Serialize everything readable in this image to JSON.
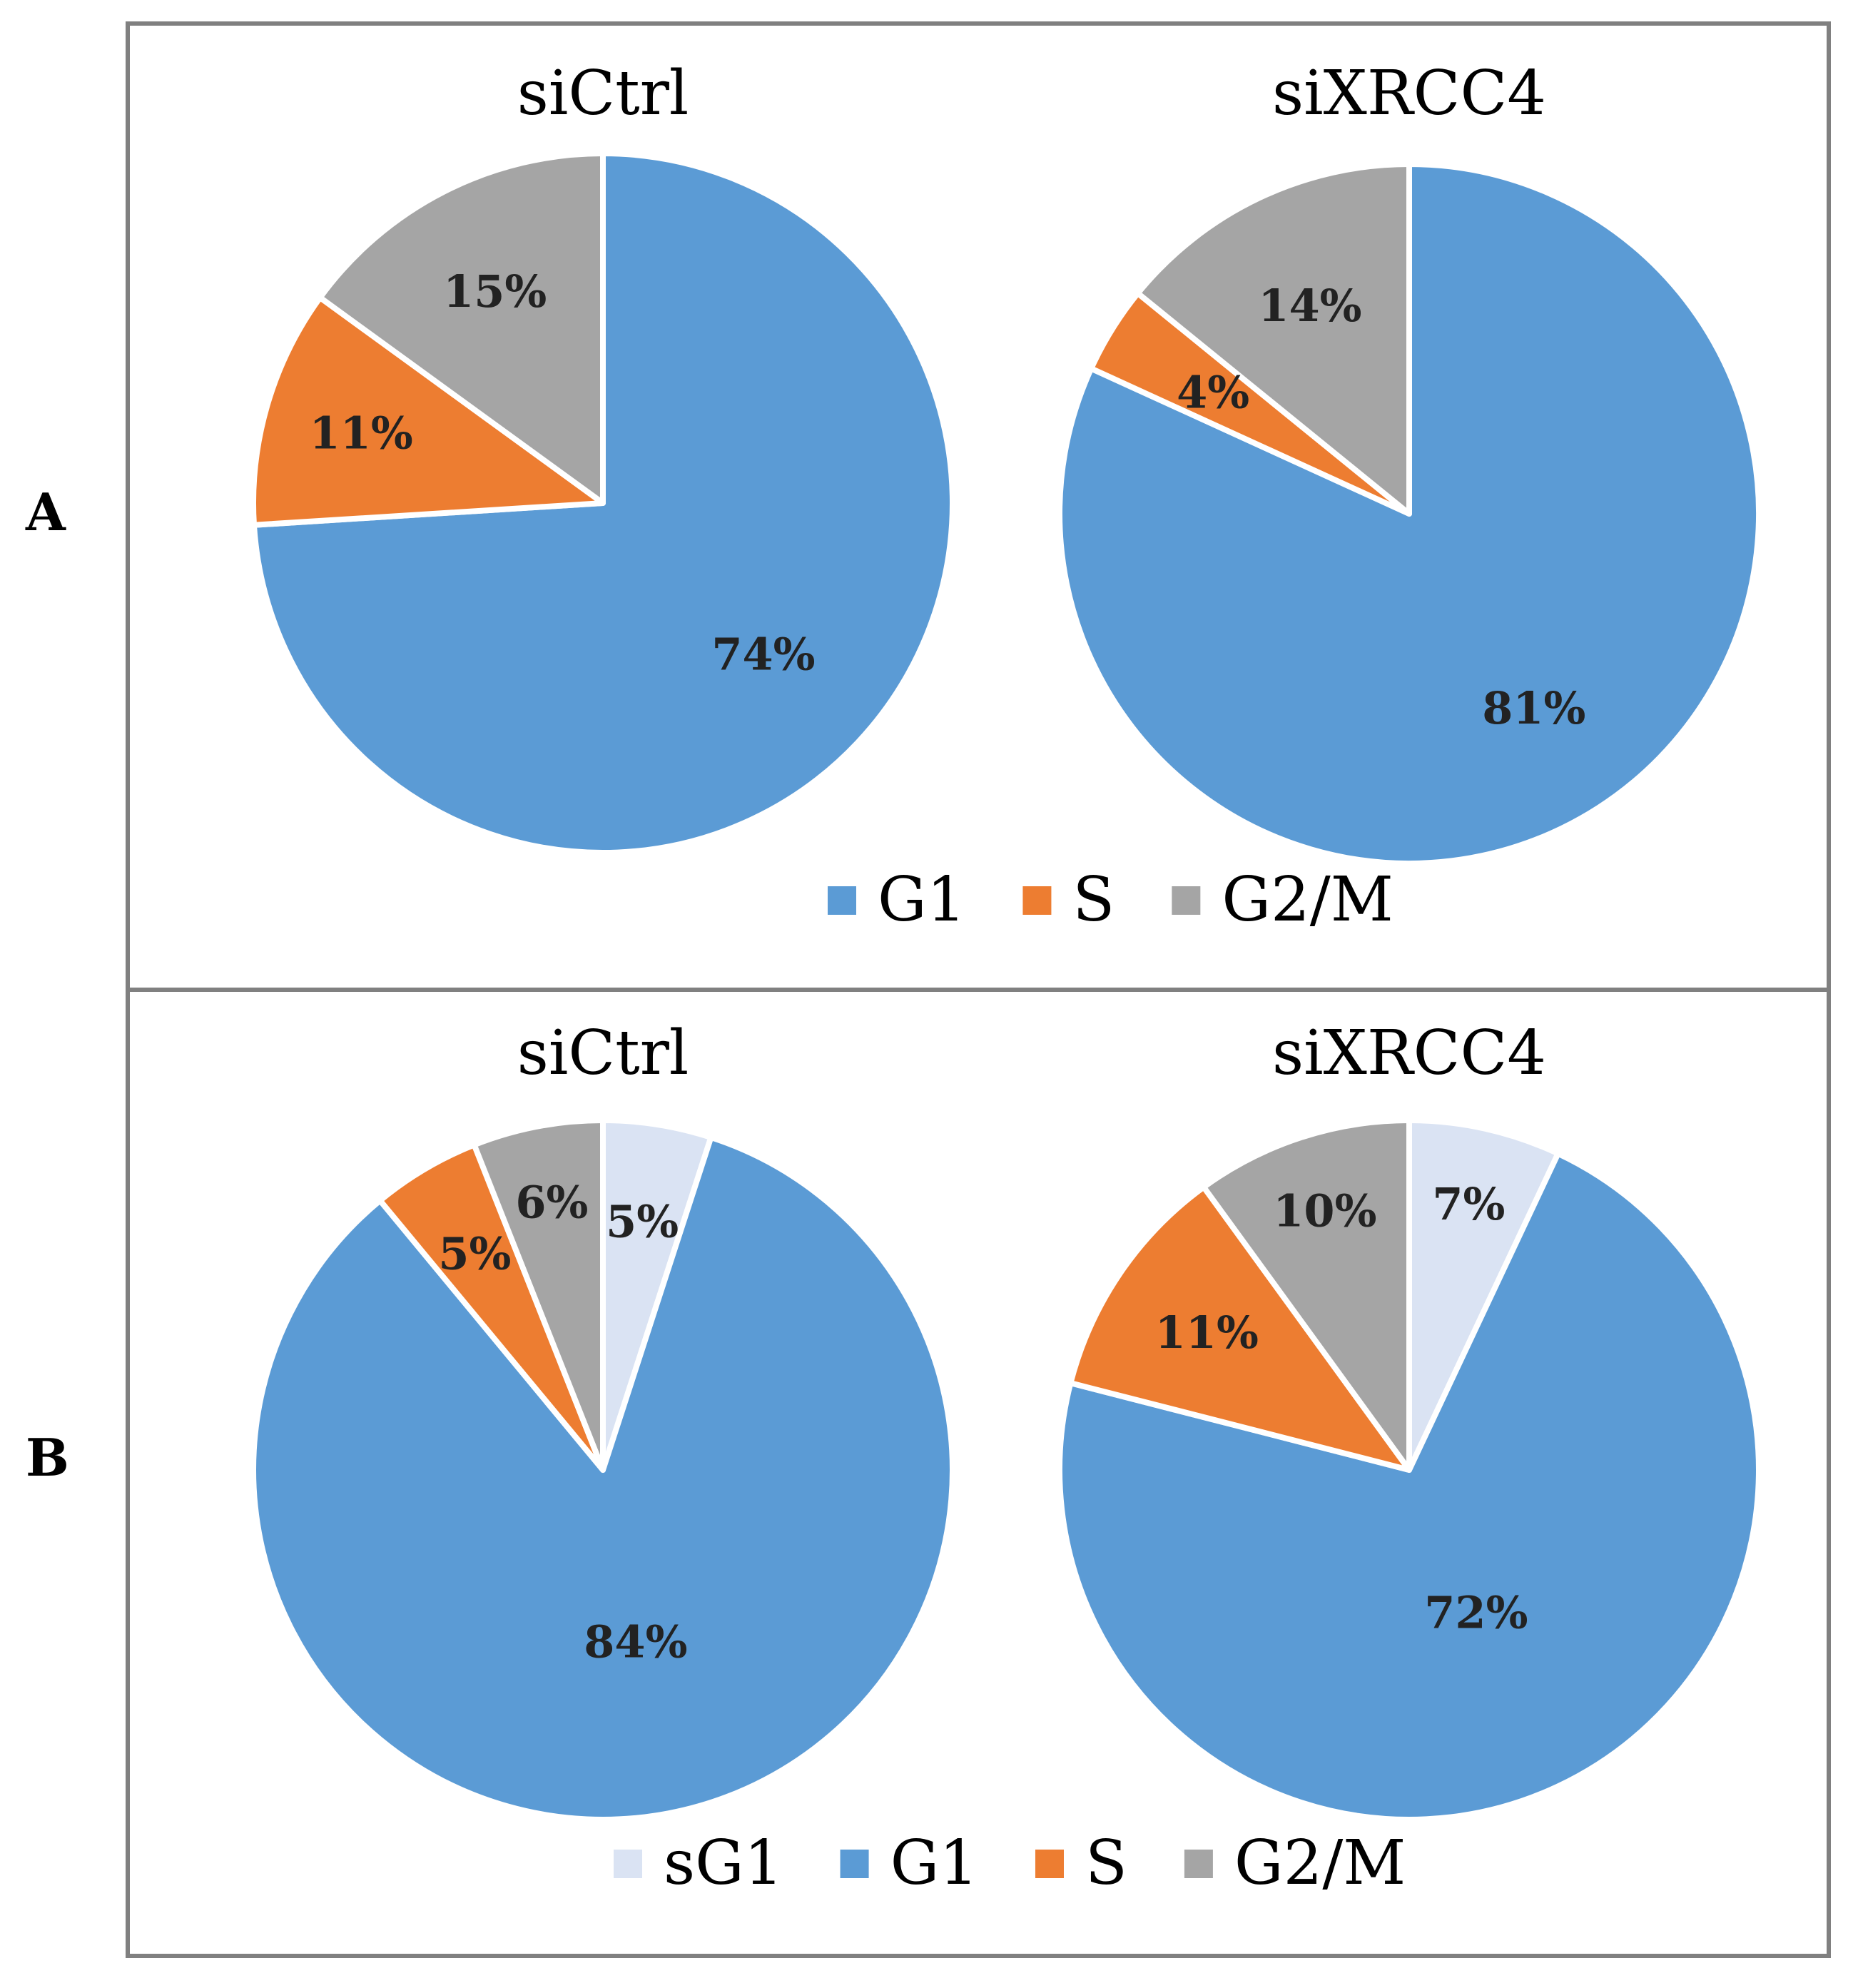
{
  "panels": [
    {
      "letter": "A"
    },
    {
      "letter": "B"
    }
  ],
  "colors": {
    "sG1": "#dae3f3",
    "G1": "#5b9bd5",
    "S": "#ed7d31",
    "G2/M": "#a5a5a5",
    "border": "#808080"
  },
  "chart_data": [
    {
      "type": "pie",
      "panel": "A",
      "title": "siCtrl",
      "slices": [
        {
          "label": "G1",
          "value": 74,
          "text": "74%"
        },
        {
          "label": "S",
          "value": 11,
          "text": "11%"
        },
        {
          "label": "G2/M",
          "value": 15,
          "text": "15%"
        }
      ]
    },
    {
      "type": "pie",
      "panel": "A",
      "title": "siXRCC4",
      "slices": [
        {
          "label": "G1",
          "value": 81,
          "text": "81%"
        },
        {
          "label": "S",
          "value": 4,
          "text": "4%"
        },
        {
          "label": "G2/M",
          "value": 14,
          "text": "14%"
        }
      ]
    },
    {
      "type": "pie",
      "panel": "B",
      "title": "siCtrl",
      "slices": [
        {
          "label": "sG1",
          "value": 5,
          "text": "5%"
        },
        {
          "label": "G1",
          "value": 84,
          "text": "84%"
        },
        {
          "label": "S",
          "value": 5,
          "text": "5%"
        },
        {
          "label": "G2/M",
          "value": 6,
          "text": "6%"
        }
      ]
    },
    {
      "type": "pie",
      "panel": "B",
      "title": "siXRCC4",
      "slices": [
        {
          "label": "sG1",
          "value": 7,
          "text": "7%"
        },
        {
          "label": "G1",
          "value": 72,
          "text": "72%"
        },
        {
          "label": "S",
          "value": 11,
          "text": "11%"
        },
        {
          "label": "G2/M",
          "value": 10,
          "text": "10%"
        }
      ]
    }
  ],
  "legends": [
    {
      "panel": "A",
      "items": [
        "G1",
        "S",
        "G2/M"
      ]
    },
    {
      "panel": "B",
      "items": [
        "sG1",
        "G1",
        "S",
        "G2/M"
      ]
    }
  ]
}
